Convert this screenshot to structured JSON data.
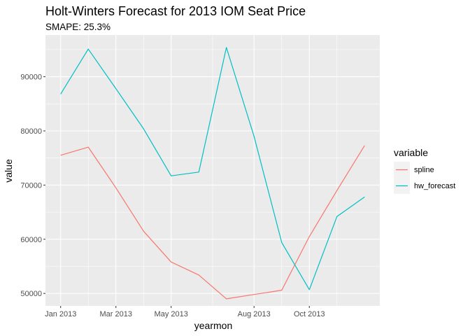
{
  "chart_data": {
    "type": "line",
    "title": "Holt-Winters Forecast for 2013 IOM Seat Price",
    "subtitle": "SMAPE: 25.3%",
    "xlabel": "yearmon",
    "ylabel": "value",
    "x": [
      "Jan 2013",
      "Feb 2013",
      "Mar 2013",
      "Apr 2013",
      "May 2013",
      "Jun 2013",
      "Jul 2013",
      "Aug 2013",
      "Sep 2013",
      "Oct 2013",
      "Nov 2013",
      "Dec 2013"
    ],
    "x_numeric": [
      2013.0,
      2013.0833,
      2013.1667,
      2013.25,
      2013.3333,
      2013.4167,
      2013.5,
      2013.5833,
      2013.6667,
      2013.75,
      2013.8333,
      2013.9167
    ],
    "xlim": [
      2012.9542,
      2013.9625
    ],
    "x_ticks": [
      {
        "value": 2013.0,
        "label": "Jan 2013"
      },
      {
        "value": 2013.1667,
        "label": "Mar 2013"
      },
      {
        "value": 2013.3333,
        "label": "May 2013"
      },
      {
        "value": 2013.5833,
        "label": "Aug 2013"
      },
      {
        "value": 2013.75,
        "label": "Oct 2013"
      }
    ],
    "x_minor": [
      2013.0833,
      2013.25,
      2013.4583,
      2013.6667,
      2013.8333
    ],
    "ylim": [
      47700,
      97700
    ],
    "y_ticks": [
      50000,
      60000,
      70000,
      80000,
      90000
    ],
    "y_minor": [
      55000,
      65000,
      75000,
      85000,
      95000
    ],
    "series": [
      {
        "name": "spline",
        "color": "#F8766D",
        "values": [
          75500,
          77000,
          69500,
          61500,
          55800,
          53400,
          49000,
          49800,
          50600,
          60500,
          69000,
          77300
        ]
      },
      {
        "name": "hw_forecast",
        "color": "#00BFC4",
        "values": [
          86800,
          95100,
          87800,
          80400,
          71700,
          72400,
          95400,
          79000,
          59400,
          50700,
          64200,
          67800
        ]
      }
    ],
    "legend": {
      "title": "variable",
      "position": "right"
    }
  }
}
